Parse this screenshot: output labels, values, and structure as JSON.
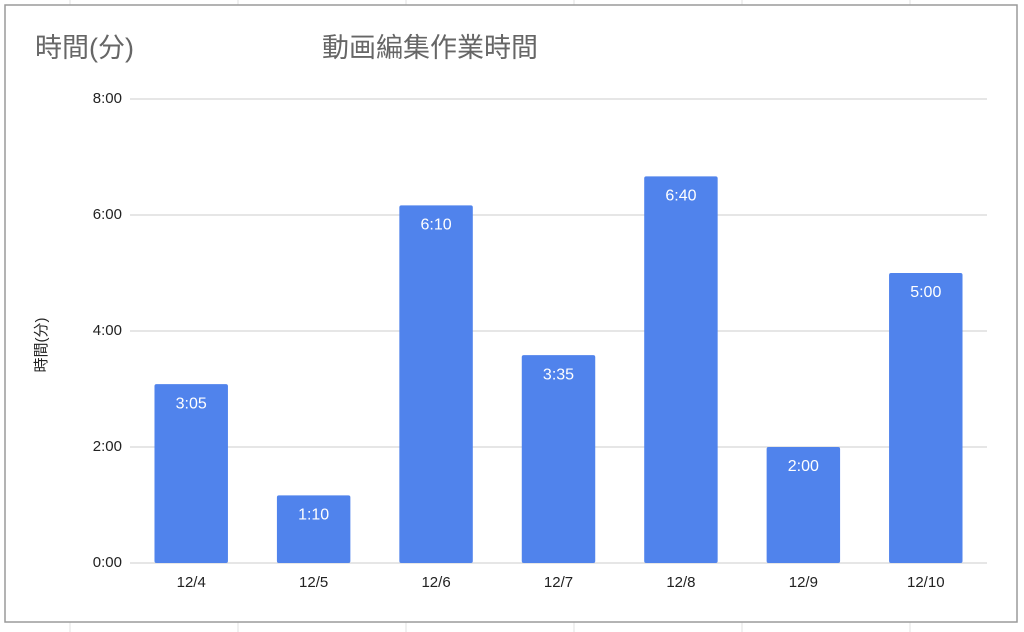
{
  "sheet_text": "時間(分)",
  "chart_data": {
    "type": "bar",
    "title": "動画編集作業時間",
    "y_label": "時間(分)",
    "categories": [
      "12/4",
      "12/5",
      "12/6",
      "12/7",
      "12/8",
      "12/9",
      "12/10"
    ],
    "values": [
      185,
      70,
      370,
      215,
      400,
      120,
      300
    ],
    "value_labels": [
      "3:05",
      "1:10",
      "6:10",
      "3:35",
      "6:40",
      "2:00",
      "5:00"
    ],
    "color": "#5083ec",
    "ylim": [
      0,
      480
    ],
    "yticks": [
      {
        "value": 0,
        "label": "0:00"
      },
      {
        "value": 120,
        "label": "2:00"
      },
      {
        "value": 240,
        "label": "4:00"
      },
      {
        "value": 360,
        "label": "6:00"
      },
      {
        "value": 480,
        "label": "8:00"
      }
    ],
    "grid": true
  }
}
